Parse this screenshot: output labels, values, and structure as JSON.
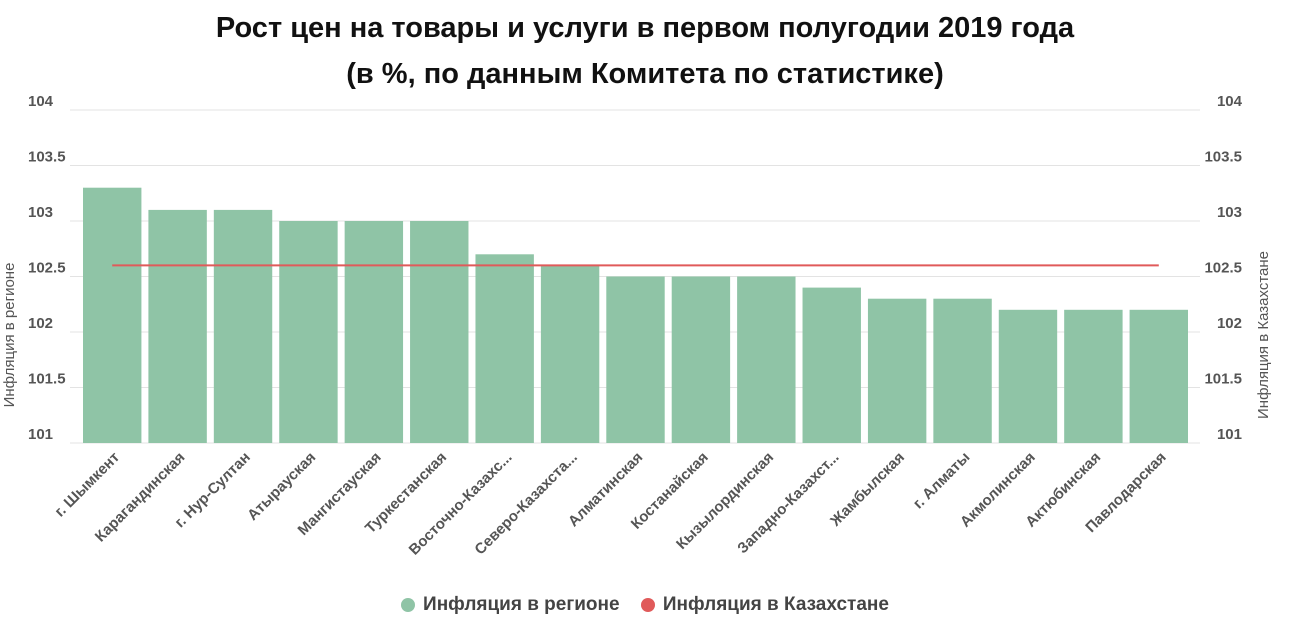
{
  "title_line1": "Рост цен на товары и услуги в первом полугодии 2019 года",
  "title_line2": "(в %, по данным Комитета по статистике)",
  "chart_data": {
    "type": "bar",
    "categories": [
      "г. Шымкент",
      "Карагандинская",
      "г. Нур-Султан",
      "Атырауская",
      "Мангистауская",
      "Туркестанская",
      "Восточно-Казахс...",
      "Северо-Казахста...",
      "Алматинская",
      "Костанайская",
      "Кызылординская",
      "Западно-Казахст...",
      "Жамбылская",
      "г. Алматы",
      "Акмолинская",
      "Актюбинская",
      "Павлодарская"
    ],
    "series": [
      {
        "name": "Инфляция в регионе",
        "type": "bar",
        "color": "#8fc4a6",
        "values": [
          103.3,
          103.1,
          103.1,
          103.0,
          103.0,
          103.0,
          102.7,
          102.6,
          102.5,
          102.5,
          102.5,
          102.4,
          102.3,
          102.3,
          102.2,
          102.2,
          102.2
        ]
      },
      {
        "name": "Инфляция в Казахстане",
        "type": "line",
        "color": "#e05a5a",
        "values": [
          102.6,
          102.6,
          102.6,
          102.6,
          102.6,
          102.6,
          102.6,
          102.6,
          102.6,
          102.6,
          102.6,
          102.6,
          102.6,
          102.6,
          102.6,
          102.6,
          102.6
        ]
      }
    ],
    "ylabel_left": "Инфляция в регионе",
    "ylabel_right": "Инфляция в Казахстане",
    "ylim": [
      101,
      104
    ],
    "yticks": [
      "101",
      "101.5",
      "102",
      "102.5",
      "103",
      "103.5",
      "104"
    ],
    "grid": true,
    "legend_position": "bottom"
  }
}
